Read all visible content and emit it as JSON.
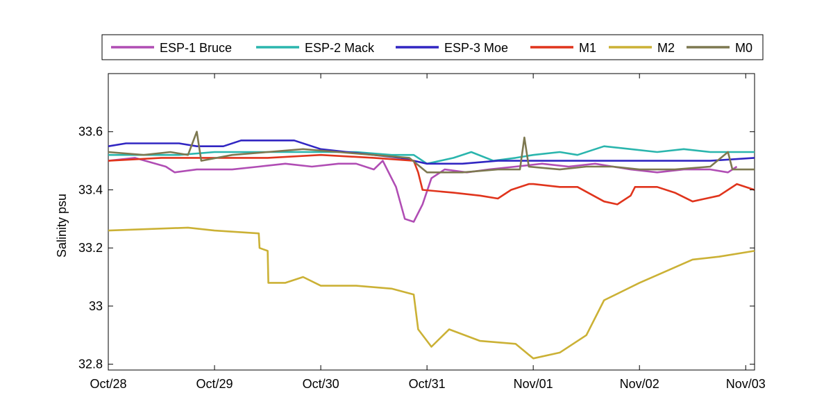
{
  "chart_data": {
    "type": "line",
    "title": "",
    "xlabel": "",
    "ylabel": "Salinity psu",
    "xlim": [
      "2012-10-28",
      "2012-11-03T02:00"
    ],
    "ylim": [
      32.78,
      33.8
    ],
    "x_ticks": [
      "Oct/28",
      "Oct/29",
      "Oct/30",
      "Oct/31",
      "Nov/01",
      "Nov/02",
      "Nov/03"
    ],
    "y_ticks": [
      "32.8",
      "33",
      "33.2",
      "33.4",
      "33.6"
    ],
    "y_tick_values": [
      32.8,
      33.0,
      33.2,
      33.4,
      33.6
    ],
    "grid": false,
    "legend_position": "top-outside",
    "series": [
      {
        "name": "ESP-1 Bruce",
        "color": "#b04db4",
        "points": [
          [
            "2012-10-28T00:00",
            33.5
          ],
          [
            "2012-10-28T06:00",
            33.51
          ],
          [
            "2012-10-28T13:00",
            33.48
          ],
          [
            "2012-10-28T15:00",
            33.46
          ],
          [
            "2012-10-28T20:00",
            33.47
          ],
          [
            "2012-10-29T04:00",
            33.47
          ],
          [
            "2012-10-29T10:00",
            33.48
          ],
          [
            "2012-10-29T16:00",
            33.49
          ],
          [
            "2012-10-29T22:00",
            33.48
          ],
          [
            "2012-10-30T04:00",
            33.49
          ],
          [
            "2012-10-30T08:00",
            33.49
          ],
          [
            "2012-10-30T12:00",
            33.47
          ],
          [
            "2012-10-30T14:00",
            33.5
          ],
          [
            "2012-10-30T15:00",
            33.47
          ],
          [
            "2012-10-30T17:00",
            33.41
          ],
          [
            "2012-10-30T19:00",
            33.3
          ],
          [
            "2012-10-30T21:00",
            33.29
          ],
          [
            "2012-10-30T23:00",
            33.35
          ],
          [
            "2012-10-31T01:00",
            33.44
          ],
          [
            "2012-10-31T04:00",
            33.47
          ],
          [
            "2012-10-31T09:00",
            33.46
          ],
          [
            "2012-10-31T14:00",
            33.47
          ],
          [
            "2012-10-31T20:00",
            33.48
          ],
          [
            "2012-11-01T02:00",
            33.49
          ],
          [
            "2012-11-01T08:00",
            33.48
          ],
          [
            "2012-11-01T14:00",
            33.49
          ],
          [
            "2012-11-01T18:00",
            33.48
          ],
          [
            "2012-11-01T22:00",
            33.47
          ],
          [
            "2012-11-02T04:00",
            33.46
          ],
          [
            "2012-11-02T10:00",
            33.47
          ],
          [
            "2012-11-02T16:00",
            33.47
          ],
          [
            "2012-11-02T20:00",
            33.46
          ],
          [
            "2012-11-02T22:00",
            33.48
          ]
        ]
      },
      {
        "name": "ESP-2 Mack",
        "color": "#2ab5ad",
        "points": [
          [
            "2012-10-28T00:00",
            33.52
          ],
          [
            "2012-10-28T08:00",
            33.52
          ],
          [
            "2012-10-28T16:00",
            33.52
          ],
          [
            "2012-10-29T00:00",
            33.53
          ],
          [
            "2012-10-29T12:00",
            33.53
          ],
          [
            "2012-10-30T00:00",
            33.53
          ],
          [
            "2012-10-30T08:00",
            33.53
          ],
          [
            "2012-10-30T16:00",
            33.52
          ],
          [
            "2012-10-30T21:00",
            33.52
          ],
          [
            "2012-10-31T00:00",
            33.49
          ],
          [
            "2012-10-31T06:00",
            33.51
          ],
          [
            "2012-10-31T10:00",
            33.53
          ],
          [
            "2012-10-31T15:00",
            33.5
          ],
          [
            "2012-10-31T20:00",
            33.51
          ],
          [
            "2012-11-01T00:00",
            33.52
          ],
          [
            "2012-11-01T06:00",
            33.53
          ],
          [
            "2012-11-01T10:00",
            33.52
          ],
          [
            "2012-11-01T16:00",
            33.55
          ],
          [
            "2012-11-01T22:00",
            33.54
          ],
          [
            "2012-11-02T04:00",
            33.53
          ],
          [
            "2012-11-02T10:00",
            33.54
          ],
          [
            "2012-11-02T16:00",
            33.53
          ],
          [
            "2012-11-02T22:00",
            33.53
          ],
          [
            "2012-11-03T02:00",
            33.53
          ]
        ]
      },
      {
        "name": "ESP-3 Moe",
        "color": "#3126c2",
        "points": [
          [
            "2012-10-28T00:00",
            33.55
          ],
          [
            "2012-10-28T04:00",
            33.56
          ],
          [
            "2012-10-28T10:00",
            33.56
          ],
          [
            "2012-10-28T16:00",
            33.56
          ],
          [
            "2012-10-28T20:00",
            33.55
          ],
          [
            "2012-10-29T02:00",
            33.55
          ],
          [
            "2012-10-29T06:00",
            33.57
          ],
          [
            "2012-10-29T12:00",
            33.57
          ],
          [
            "2012-10-29T18:00",
            33.57
          ],
          [
            "2012-10-30T00:00",
            33.54
          ],
          [
            "2012-10-30T06:00",
            33.53
          ],
          [
            "2012-10-30T12:00",
            33.52
          ],
          [
            "2012-10-30T18:00",
            33.51
          ],
          [
            "2012-10-31T00:00",
            33.49
          ],
          [
            "2012-10-31T08:00",
            33.49
          ],
          [
            "2012-10-31T16:00",
            33.5
          ],
          [
            "2012-11-01T00:00",
            33.5
          ],
          [
            "2012-11-01T08:00",
            33.5
          ],
          [
            "2012-11-01T16:00",
            33.5
          ],
          [
            "2012-11-02T00:00",
            33.5
          ],
          [
            "2012-11-02T08:00",
            33.5
          ],
          [
            "2012-11-02T16:00",
            33.5
          ],
          [
            "2012-11-03T02:00",
            33.51
          ]
        ]
      },
      {
        "name": "M1",
        "color": "#e0341c",
        "points": [
          [
            "2012-10-28T00:00",
            33.5
          ],
          [
            "2012-10-28T12:00",
            33.51
          ],
          [
            "2012-10-29T00:00",
            33.51
          ],
          [
            "2012-10-29T12:00",
            33.51
          ],
          [
            "2012-10-30T00:00",
            33.52
          ],
          [
            "2012-10-30T12:00",
            33.51
          ],
          [
            "2012-10-30T21:00",
            33.5
          ],
          [
            "2012-10-30T22:00",
            33.46
          ],
          [
            "2012-10-30T23:00",
            33.4
          ],
          [
            "2012-10-31T06:00",
            33.39
          ],
          [
            "2012-10-31T12:00",
            33.38
          ],
          [
            "2012-10-31T16:00",
            33.37
          ],
          [
            "2012-10-31T19:00",
            33.4
          ],
          [
            "2012-10-31T23:00",
            33.42
          ],
          [
            "2012-11-01T00:00",
            33.42
          ],
          [
            "2012-11-01T06:00",
            33.41
          ],
          [
            "2012-11-01T10:00",
            33.41
          ],
          [
            "2012-11-01T16:00",
            33.36
          ],
          [
            "2012-11-01T19:00",
            33.35
          ],
          [
            "2012-11-01T22:00",
            33.38
          ],
          [
            "2012-11-01T23:00",
            33.41
          ],
          [
            "2012-11-02T04:00",
            33.41
          ],
          [
            "2012-11-02T08:00",
            33.39
          ],
          [
            "2012-11-02T12:00",
            33.36
          ],
          [
            "2012-11-02T18:00",
            33.38
          ],
          [
            "2012-11-02T22:00",
            33.42
          ],
          [
            "2012-11-03T02:00",
            33.4
          ]
        ]
      },
      {
        "name": "M2",
        "color": "#cbb135",
        "points": [
          [
            "2012-10-28T00:00",
            33.26
          ],
          [
            "2012-10-28T18:00",
            33.27
          ],
          [
            "2012-10-29T00:00",
            33.26
          ],
          [
            "2012-10-29T10:00",
            33.25
          ],
          [
            "2012-10-29T10:10",
            33.2
          ],
          [
            "2012-10-29T12:00",
            33.19
          ],
          [
            "2012-10-29T12:10",
            33.08
          ],
          [
            "2012-10-29T16:00",
            33.08
          ],
          [
            "2012-10-29T20:00",
            33.1
          ],
          [
            "2012-10-30T00:00",
            33.07
          ],
          [
            "2012-10-30T08:00",
            33.07
          ],
          [
            "2012-10-30T16:00",
            33.06
          ],
          [
            "2012-10-30T21:00",
            33.04
          ],
          [
            "2012-10-30T22:00",
            32.92
          ],
          [
            "2012-10-31T01:00",
            32.86
          ],
          [
            "2012-10-31T05:00",
            32.92
          ],
          [
            "2012-10-31T12:00",
            32.88
          ],
          [
            "2012-10-31T20:00",
            32.87
          ],
          [
            "2012-11-01T00:00",
            32.82
          ],
          [
            "2012-11-01T06:00",
            32.84
          ],
          [
            "2012-11-01T12:00",
            32.9
          ],
          [
            "2012-11-01T16:00",
            33.02
          ],
          [
            "2012-11-01T20:00",
            33.05
          ],
          [
            "2012-11-02T00:00",
            33.08
          ],
          [
            "2012-11-02T06:00",
            33.12
          ],
          [
            "2012-11-02T12:00",
            33.16
          ],
          [
            "2012-11-02T18:00",
            33.17
          ],
          [
            "2012-11-03T02:00",
            33.19
          ]
        ]
      },
      {
        "name": "M0",
        "color": "#7d7850",
        "points": [
          [
            "2012-10-28T00:00",
            33.53
          ],
          [
            "2012-10-28T08:00",
            33.52
          ],
          [
            "2012-10-28T14:00",
            33.53
          ],
          [
            "2012-10-28T18:00",
            33.52
          ],
          [
            "2012-10-28T20:00",
            33.6
          ],
          [
            "2012-10-28T21:00",
            33.5
          ],
          [
            "2012-10-29T04:00",
            33.52
          ],
          [
            "2012-10-29T12:00",
            33.53
          ],
          [
            "2012-10-29T20:00",
            33.54
          ],
          [
            "2012-10-30T04:00",
            33.53
          ],
          [
            "2012-10-30T12:00",
            33.52
          ],
          [
            "2012-10-30T20:00",
            33.51
          ],
          [
            "2012-10-31T00:00",
            33.46
          ],
          [
            "2012-10-31T08:00",
            33.46
          ],
          [
            "2012-10-31T16:00",
            33.47
          ],
          [
            "2012-10-31T21:00",
            33.47
          ],
          [
            "2012-10-31T22:00",
            33.58
          ],
          [
            "2012-10-31T23:00",
            33.48
          ],
          [
            "2012-11-01T06:00",
            33.47
          ],
          [
            "2012-11-01T12:00",
            33.48
          ],
          [
            "2012-11-01T18:00",
            33.48
          ],
          [
            "2012-11-02T00:00",
            33.47
          ],
          [
            "2012-11-02T08:00",
            33.47
          ],
          [
            "2012-11-02T16:00",
            33.48
          ],
          [
            "2012-11-02T20:00",
            33.53
          ],
          [
            "2012-11-02T21:00",
            33.47
          ],
          [
            "2012-11-03T02:00",
            33.47
          ]
        ]
      }
    ]
  }
}
